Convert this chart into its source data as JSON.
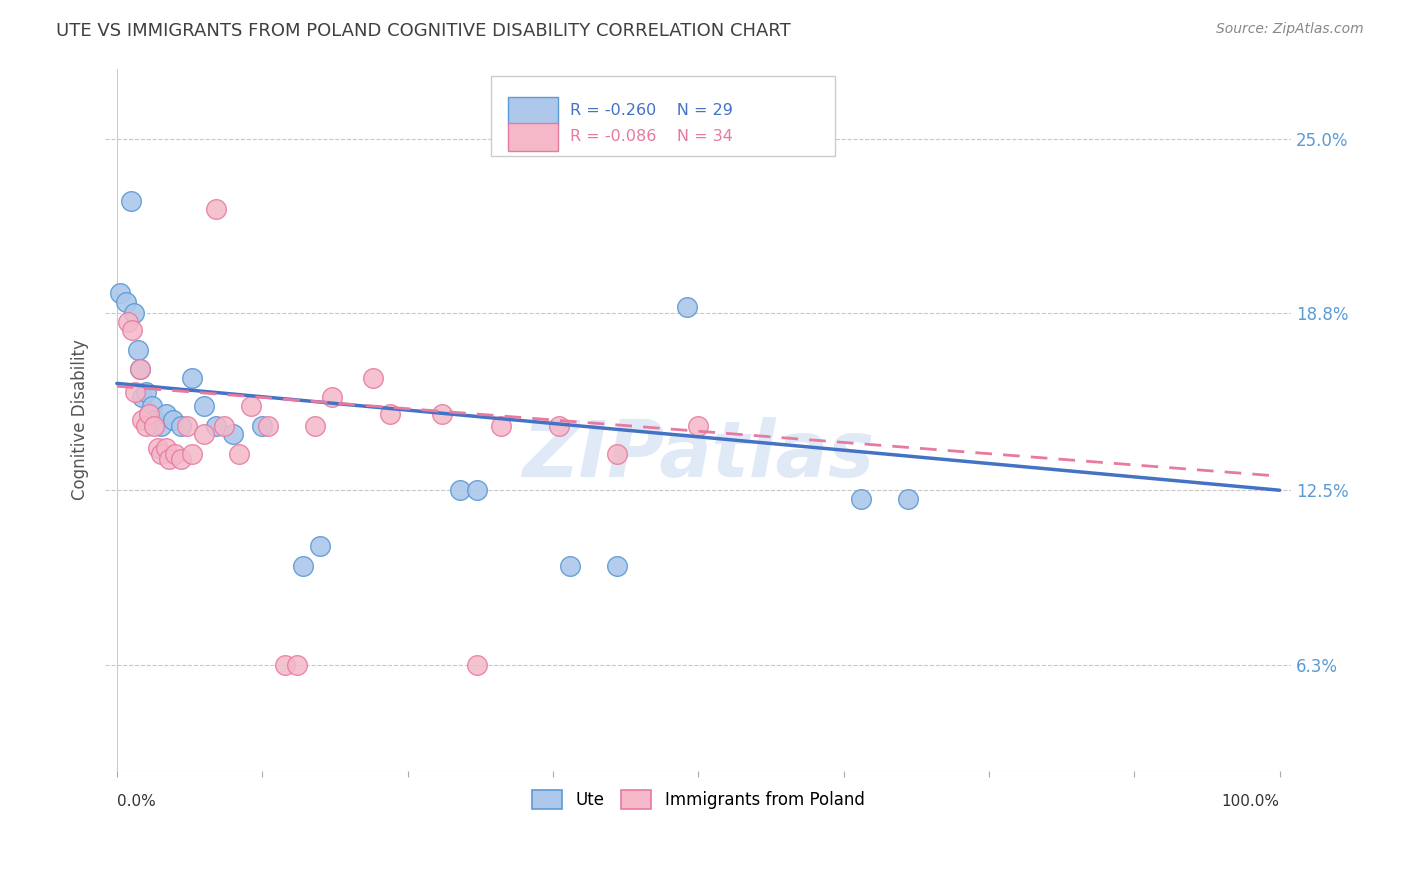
{
  "title": "UTE VS IMMIGRANTS FROM POLAND COGNITIVE DISABILITY CORRELATION CHART",
  "source": "Source: ZipAtlas.com",
  "ylabel": "Cognitive Disability",
  "ytick_labels": [
    "6.3%",
    "12.5%",
    "18.8%",
    "25.0%"
  ],
  "ytick_values": [
    0.063,
    0.125,
    0.188,
    0.25
  ],
  "xlim": [
    -0.01,
    1.01
  ],
  "ylim": [
    0.025,
    0.275
  ],
  "legend_ute_R": "R = -0.260",
  "legend_ute_N": "N = 29",
  "legend_poland_R": "R = -0.086",
  "legend_poland_N": "N = 34",
  "ute_color": "#adc8ea",
  "ute_edge_color": "#5b9bd5",
  "ute_line_color": "#4472c4",
  "poland_color": "#f4b8c8",
  "poland_edge_color": "#e879a0",
  "poland_line_color": "#e879a0",
  "watermark": "ZIPatlas",
  "background_color": "#ffffff",
  "grid_color": "#c8c8c8",
  "title_color": "#404040",
  "source_color": "#888888",
  "tick_label_color": "#5b9bd5"
}
